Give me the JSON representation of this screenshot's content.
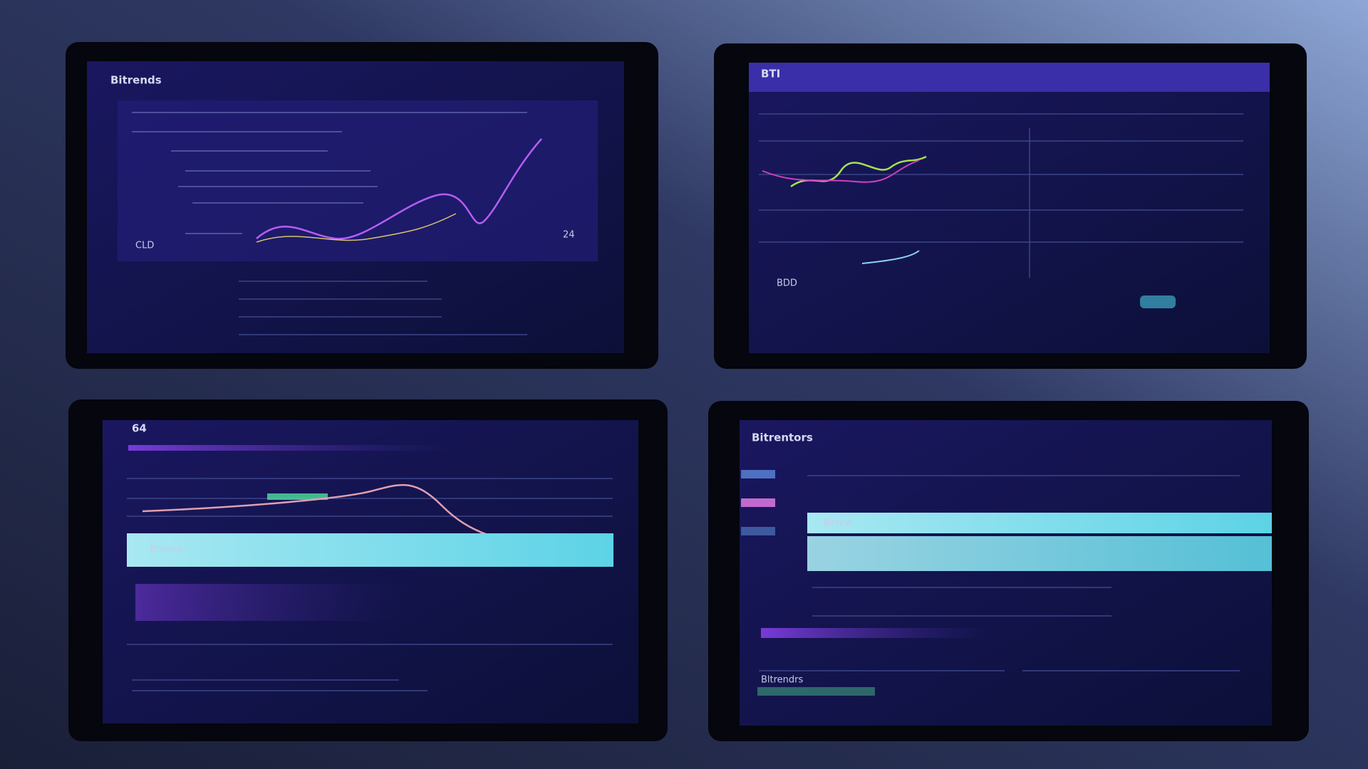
{
  "panels": [
    {
      "title": "Bitrends",
      "labels": [
        "CLD",
        "24"
      ]
    },
    {
      "title": "BTI",
      "labels": [
        "BDD"
      ]
    },
    {
      "title": "64",
      "labels": [
        "Bitrend"
      ]
    },
    {
      "title": "Bitrentors",
      "labels": [
        "Bitrew",
        "Bltrendrs"
      ]
    }
  ]
}
